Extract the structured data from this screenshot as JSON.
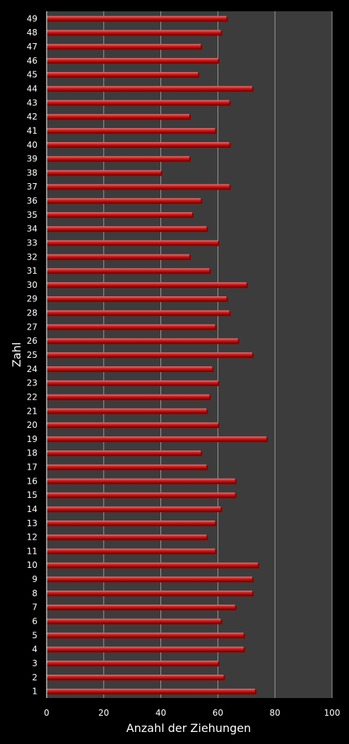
{
  "chart_data": {
    "type": "bar",
    "orientation": "horizontal",
    "title": "",
    "xlabel": "Anzahl der Ziehungen",
    "ylabel": "Zahl",
    "xlim": [
      0,
      100
    ],
    "x_ticks": [
      0,
      20,
      40,
      60,
      80,
      100
    ],
    "grid": "vertical",
    "legend": "none",
    "colors": {
      "background": "#000000",
      "plot_area": "#3c3c3c",
      "bar_fill": "#d91c1c",
      "bar_highlight": "#ff6b6b",
      "bar_shadow": "#7a0606",
      "gridline": "#9a9a9a",
      "text": "#ffffff"
    },
    "categories": [
      "1",
      "2",
      "3",
      "4",
      "5",
      "6",
      "7",
      "8",
      "9",
      "10",
      "11",
      "12",
      "13",
      "14",
      "15",
      "16",
      "17",
      "18",
      "19",
      "20",
      "21",
      "22",
      "23",
      "24",
      "25",
      "26",
      "27",
      "28",
      "29",
      "30",
      "31",
      "32",
      "33",
      "34",
      "35",
      "36",
      "37",
      "38",
      "39",
      "40",
      "41",
      "42",
      "43",
      "44",
      "45",
      "46",
      "47",
      "48",
      "49"
    ],
    "values": [
      73,
      62,
      60,
      69,
      69,
      61,
      66,
      72,
      72,
      74,
      59,
      56,
      59,
      61,
      66,
      66,
      56,
      54,
      77,
      60,
      56,
      57,
      60,
      58,
      72,
      67,
      59,
      64,
      63,
      70,
      57,
      50,
      60,
      56,
      51,
      54,
      64,
      40,
      50,
      64,
      59,
      50,
      64,
      72,
      53,
      60,
      54,
      61,
      63
    ]
  }
}
